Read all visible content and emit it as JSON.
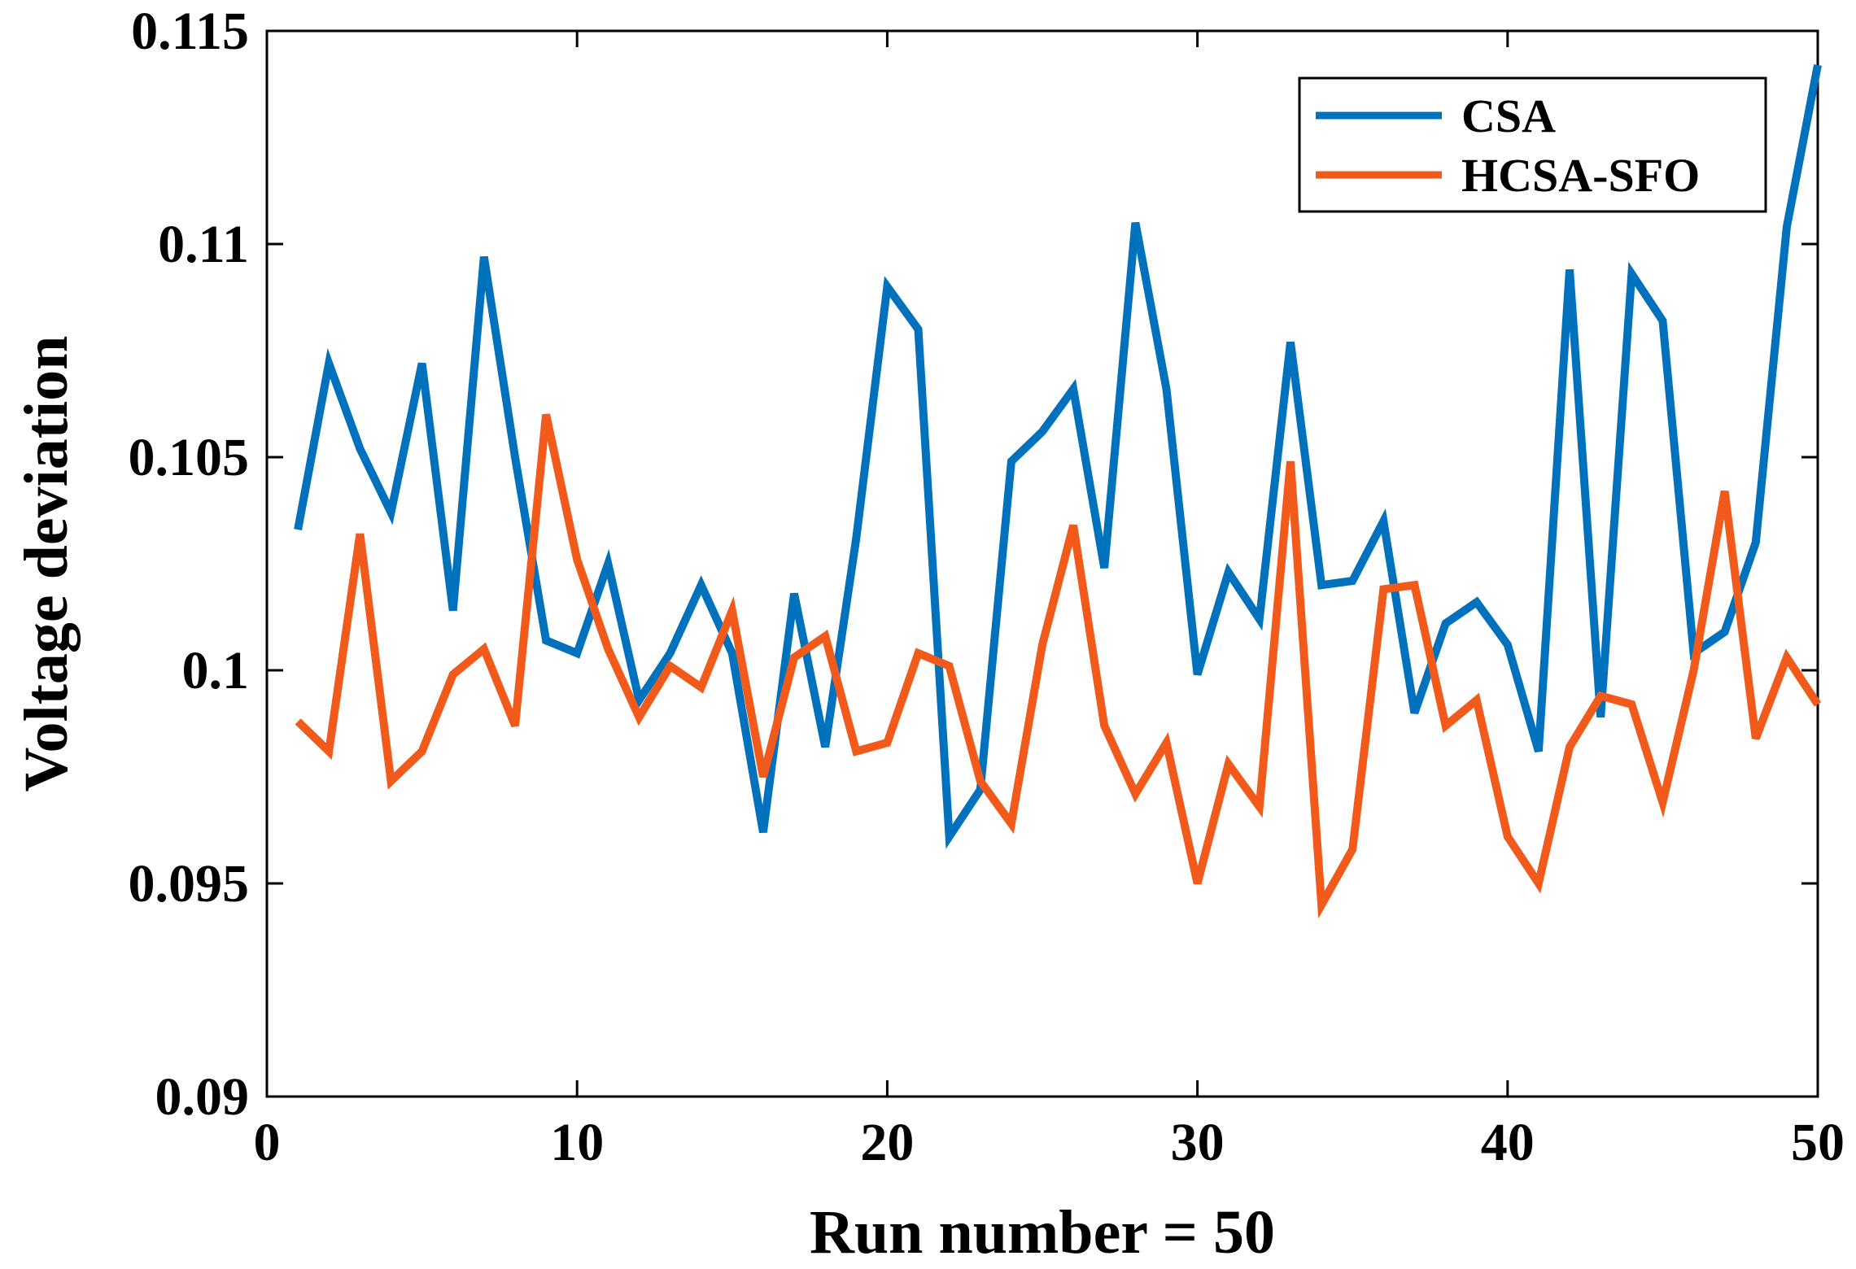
{
  "chart_data": {
    "type": "line",
    "title": "",
    "xlabel": "Run number = 50",
    "ylabel": "Voltage deviation",
    "xlim": [
      0,
      50
    ],
    "ylim": [
      0.09,
      0.115
    ],
    "xticks": [
      0,
      10,
      20,
      30,
      40,
      50
    ],
    "xtick_labels": [
      "0",
      "10",
      "20",
      "30",
      "40",
      "50"
    ],
    "yticks": [
      0.09,
      0.095,
      0.1,
      0.105,
      0.11,
      0.115
    ],
    "ytick_labels": [
      "0.09",
      "0.095",
      "0.1",
      "0.105",
      "0.11",
      "0.115"
    ],
    "grid": false,
    "legend_position": "top-right",
    "x": [
      1,
      2,
      3,
      4,
      5,
      6,
      7,
      8,
      9,
      10,
      11,
      12,
      13,
      14,
      15,
      16,
      17,
      18,
      19,
      20,
      21,
      22,
      23,
      24,
      25,
      26,
      27,
      28,
      29,
      30,
      31,
      32,
      33,
      34,
      35,
      36,
      37,
      38,
      39,
      40,
      41,
      42,
      43,
      44,
      45,
      46,
      47,
      48,
      49,
      50
    ],
    "series": [
      {
        "name": "CSA",
        "color": "#0072BD",
        "values": [
          0.1033,
          0.1072,
          0.1052,
          0.1037,
          0.1072,
          0.1014,
          0.1097,
          0.105,
          0.1007,
          0.1004,
          0.1025,
          0.0993,
          0.1004,
          0.102,
          0.1004,
          0.0962,
          0.1018,
          0.0982,
          0.1031,
          0.109,
          0.108,
          0.0961,
          0.0972,
          0.1049,
          0.1056,
          0.1066,
          0.1024,
          0.1105,
          0.1066,
          0.0999,
          0.1023,
          0.1012,
          0.1077,
          0.102,
          0.1021,
          0.1035,
          0.099,
          0.1011,
          0.1016,
          0.1006,
          0.0981,
          0.1094,
          0.0989,
          0.1093,
          0.1082,
          0.1004,
          0.1009,
          0.103,
          0.1104,
          0.1142
        ]
      },
      {
        "name": "HCSA-SFO",
        "color": "#F15A1A",
        "values": [
          0.0988,
          0.0981,
          0.1032,
          0.0974,
          0.0981,
          0.0999,
          0.1005,
          0.0987,
          0.106,
          0.1026,
          0.1005,
          0.0989,
          0.1001,
          0.0996,
          0.1014,
          0.0975,
          0.1003,
          0.1008,
          0.0981,
          0.0983,
          0.1004,
          0.1001,
          0.0974,
          0.0964,
          0.1006,
          0.1034,
          0.0987,
          0.0971,
          0.0983,
          0.095,
          0.0978,
          0.0968,
          0.1049,
          0.0945,
          0.0958,
          0.1019,
          0.102,
          0.0987,
          0.0993,
          0.0961,
          0.095,
          0.0982,
          0.0994,
          0.0992,
          0.0969,
          0.1,
          0.1042,
          0.0984,
          0.1003,
          0.0992
        ]
      }
    ]
  }
}
